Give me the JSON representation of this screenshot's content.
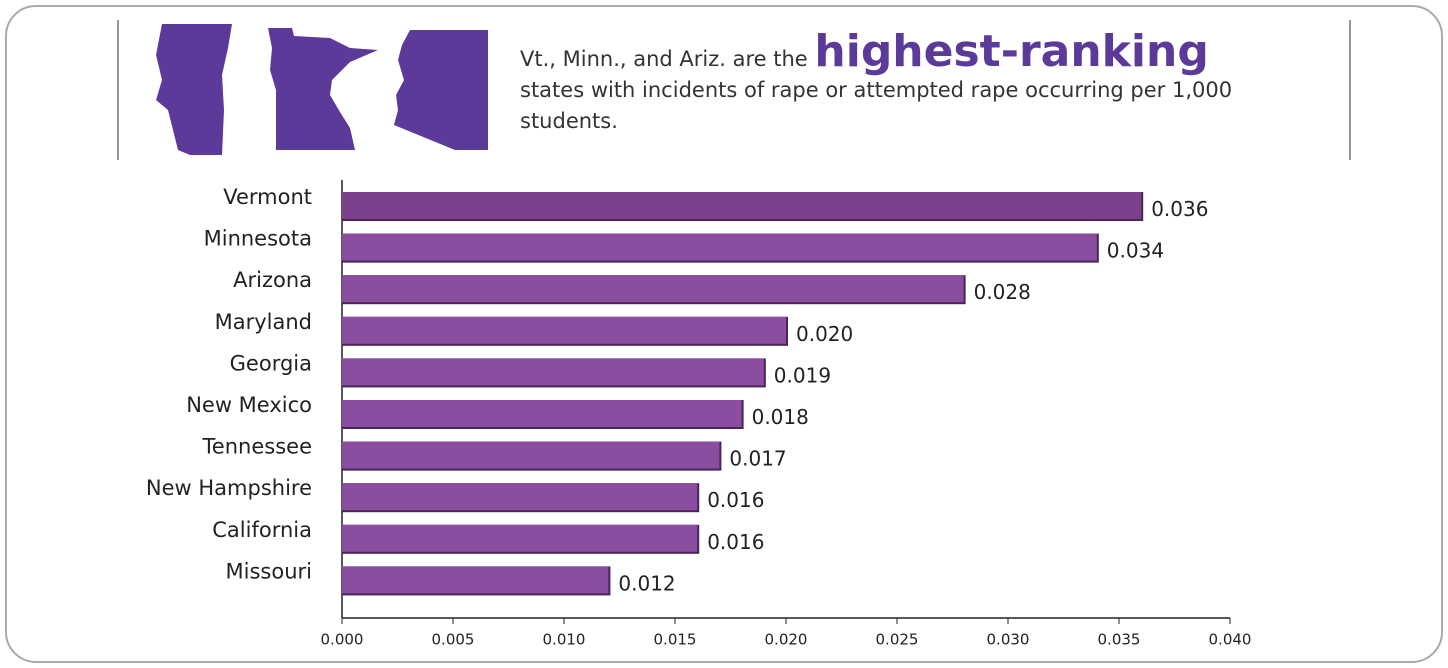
{
  "chart_data": {
    "type": "bar",
    "orientation": "horizontal",
    "title": {
      "lead": "Vt., Minn., and Ariz. are the",
      "highlight": "highest-ranking",
      "rest": "states with incidents of rape or attempted rape occurring per 1,000 students."
    },
    "categories": [
      "Vermont",
      "Minnesota",
      "Arizona",
      "Maryland",
      "Georgia",
      "New Mexico",
      "Tennessee",
      "New Hampshire",
      "California",
      "Missouri"
    ],
    "values": [
      0.036,
      0.034,
      0.028,
      0.02,
      0.019,
      0.018,
      0.017,
      0.016,
      0.016,
      0.012
    ],
    "value_labels": [
      "0.036",
      "0.034",
      "0.028",
      "0.020",
      "0.019",
      "0.018",
      "0.017",
      "0.016",
      "0.016",
      "0.012"
    ],
    "colors": [
      "#7d418c",
      "#8a4d9f",
      "#8a4d9f",
      "#8a4d9f",
      "#8a4d9f",
      "#8a4d9f",
      "#8a4d9f",
      "#8a4d9f",
      "#8a4d9f",
      "#8a4d9f"
    ],
    "xlim": [
      0,
      0.04
    ],
    "xticks": [
      {
        "value": 0,
        "label": "0.000"
      },
      {
        "value": 0.005,
        "label": "0.005"
      },
      {
        "value": 0.01,
        "label": "0.010"
      },
      {
        "value": 0.015,
        "label": "0.015"
      },
      {
        "value": 0.02,
        "label": "0.020"
      },
      {
        "value": 0.025,
        "label": "0.025"
      },
      {
        "value": 0.03,
        "label": "0.030"
      },
      {
        "value": 0.035,
        "label": "0.035"
      },
      {
        "value": 0.04,
        "label": "0.040"
      }
    ],
    "grid": false
  }
}
